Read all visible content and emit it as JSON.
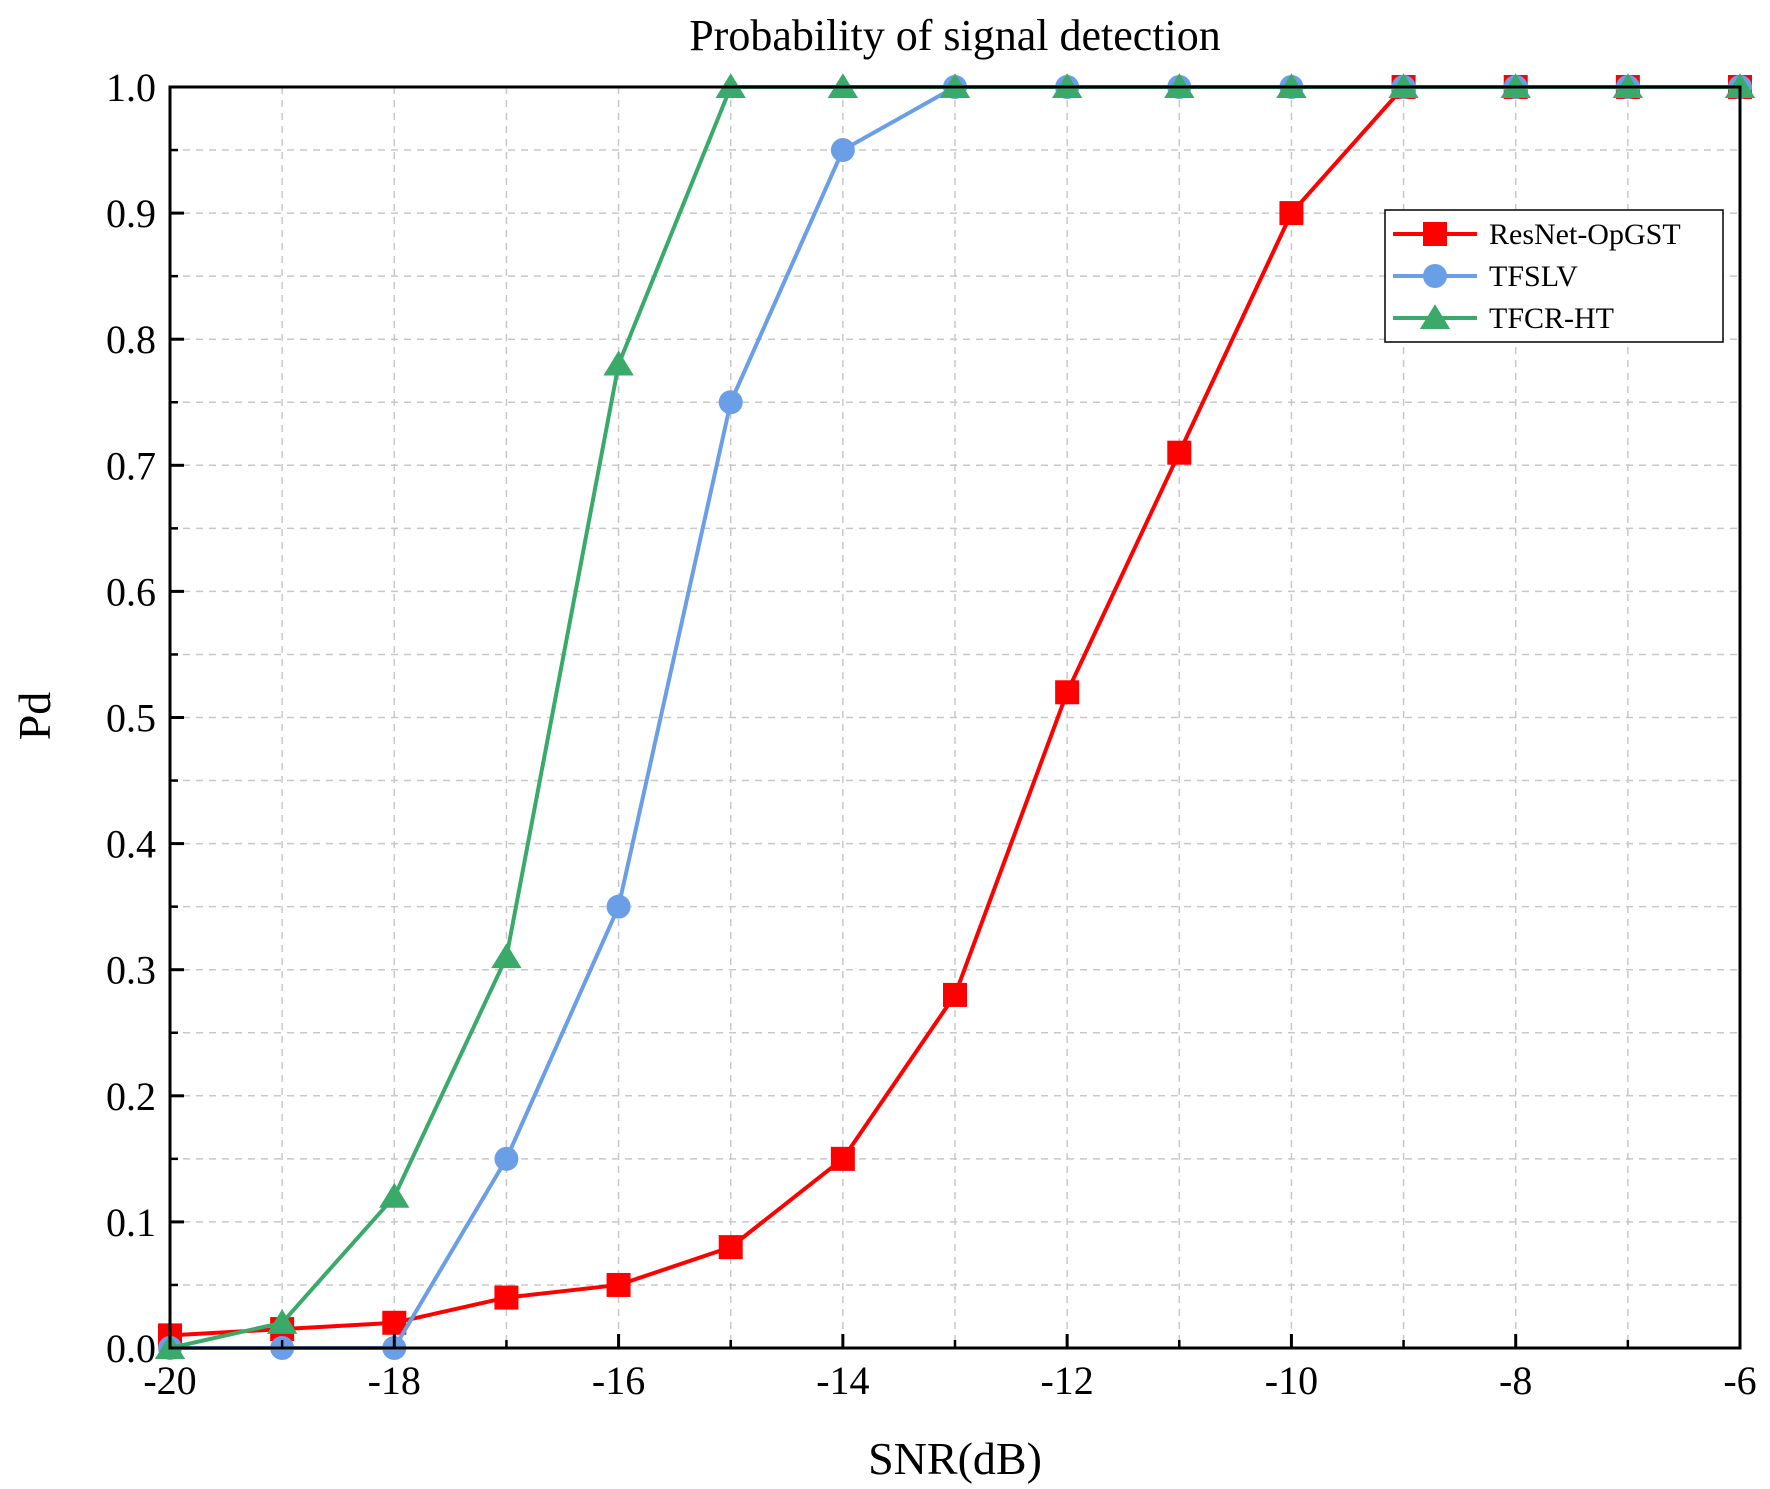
{
  "chart_data": {
    "type": "line",
    "title": "Probability of signal detection",
    "xlabel": "SNR(dB)",
    "ylabel": "Pd",
    "xlim": [
      -20,
      -6
    ],
    "ylim": [
      0,
      1.0
    ],
    "xticks": [
      -20,
      -18,
      -16,
      -14,
      -12,
      -10,
      -8,
      -6
    ],
    "xtick_labels": [
      "-20",
      "-18",
      "-16",
      "-14",
      "-12",
      "-10",
      "-8",
      "-6"
    ],
    "yticks": [
      0,
      0.1,
      0.2,
      0.3,
      0.4,
      0.5,
      0.6,
      0.7,
      0.8,
      0.9,
      1.0
    ],
    "ytick_labels": [
      "0.0",
      "0.1",
      "0.2",
      "0.3",
      "0.4",
      "0.5",
      "0.6",
      "0.7",
      "0.8",
      "0.9",
      "1.0"
    ],
    "grid": true,
    "legend_position": "top-right",
    "x": [
      -20,
      -19,
      -18,
      -17,
      -16,
      -15,
      -14,
      -13,
      -12,
      -11,
      -10,
      -9,
      -8,
      -7,
      -6
    ],
    "series": [
      {
        "name": "ResNet-OpGST",
        "color": "#ff0000",
        "marker": "square",
        "values": [
          0.01,
          0.015,
          0.02,
          0.04,
          0.05,
          0.08,
          0.15,
          0.28,
          0.52,
          0.71,
          0.9,
          1.0,
          1.0,
          1.0,
          1.0
        ]
      },
      {
        "name": "TFSLV",
        "color": "#6a9fe8",
        "marker": "circle",
        "values": [
          0.0,
          0.0,
          0.0,
          0.15,
          0.35,
          0.75,
          0.95,
          1.0,
          1.0,
          1.0,
          1.0,
          1.0,
          1.0,
          1.0,
          1.0
        ]
      },
      {
        "name": "TFCR-HT",
        "color": "#3aaa6a",
        "marker": "triangle",
        "values": [
          0.0,
          0.02,
          0.12,
          0.31,
          0.78,
          1.0,
          1.0,
          1.0,
          1.0,
          1.0,
          1.0,
          1.0,
          1.0,
          1.0,
          1.0
        ]
      }
    ]
  }
}
